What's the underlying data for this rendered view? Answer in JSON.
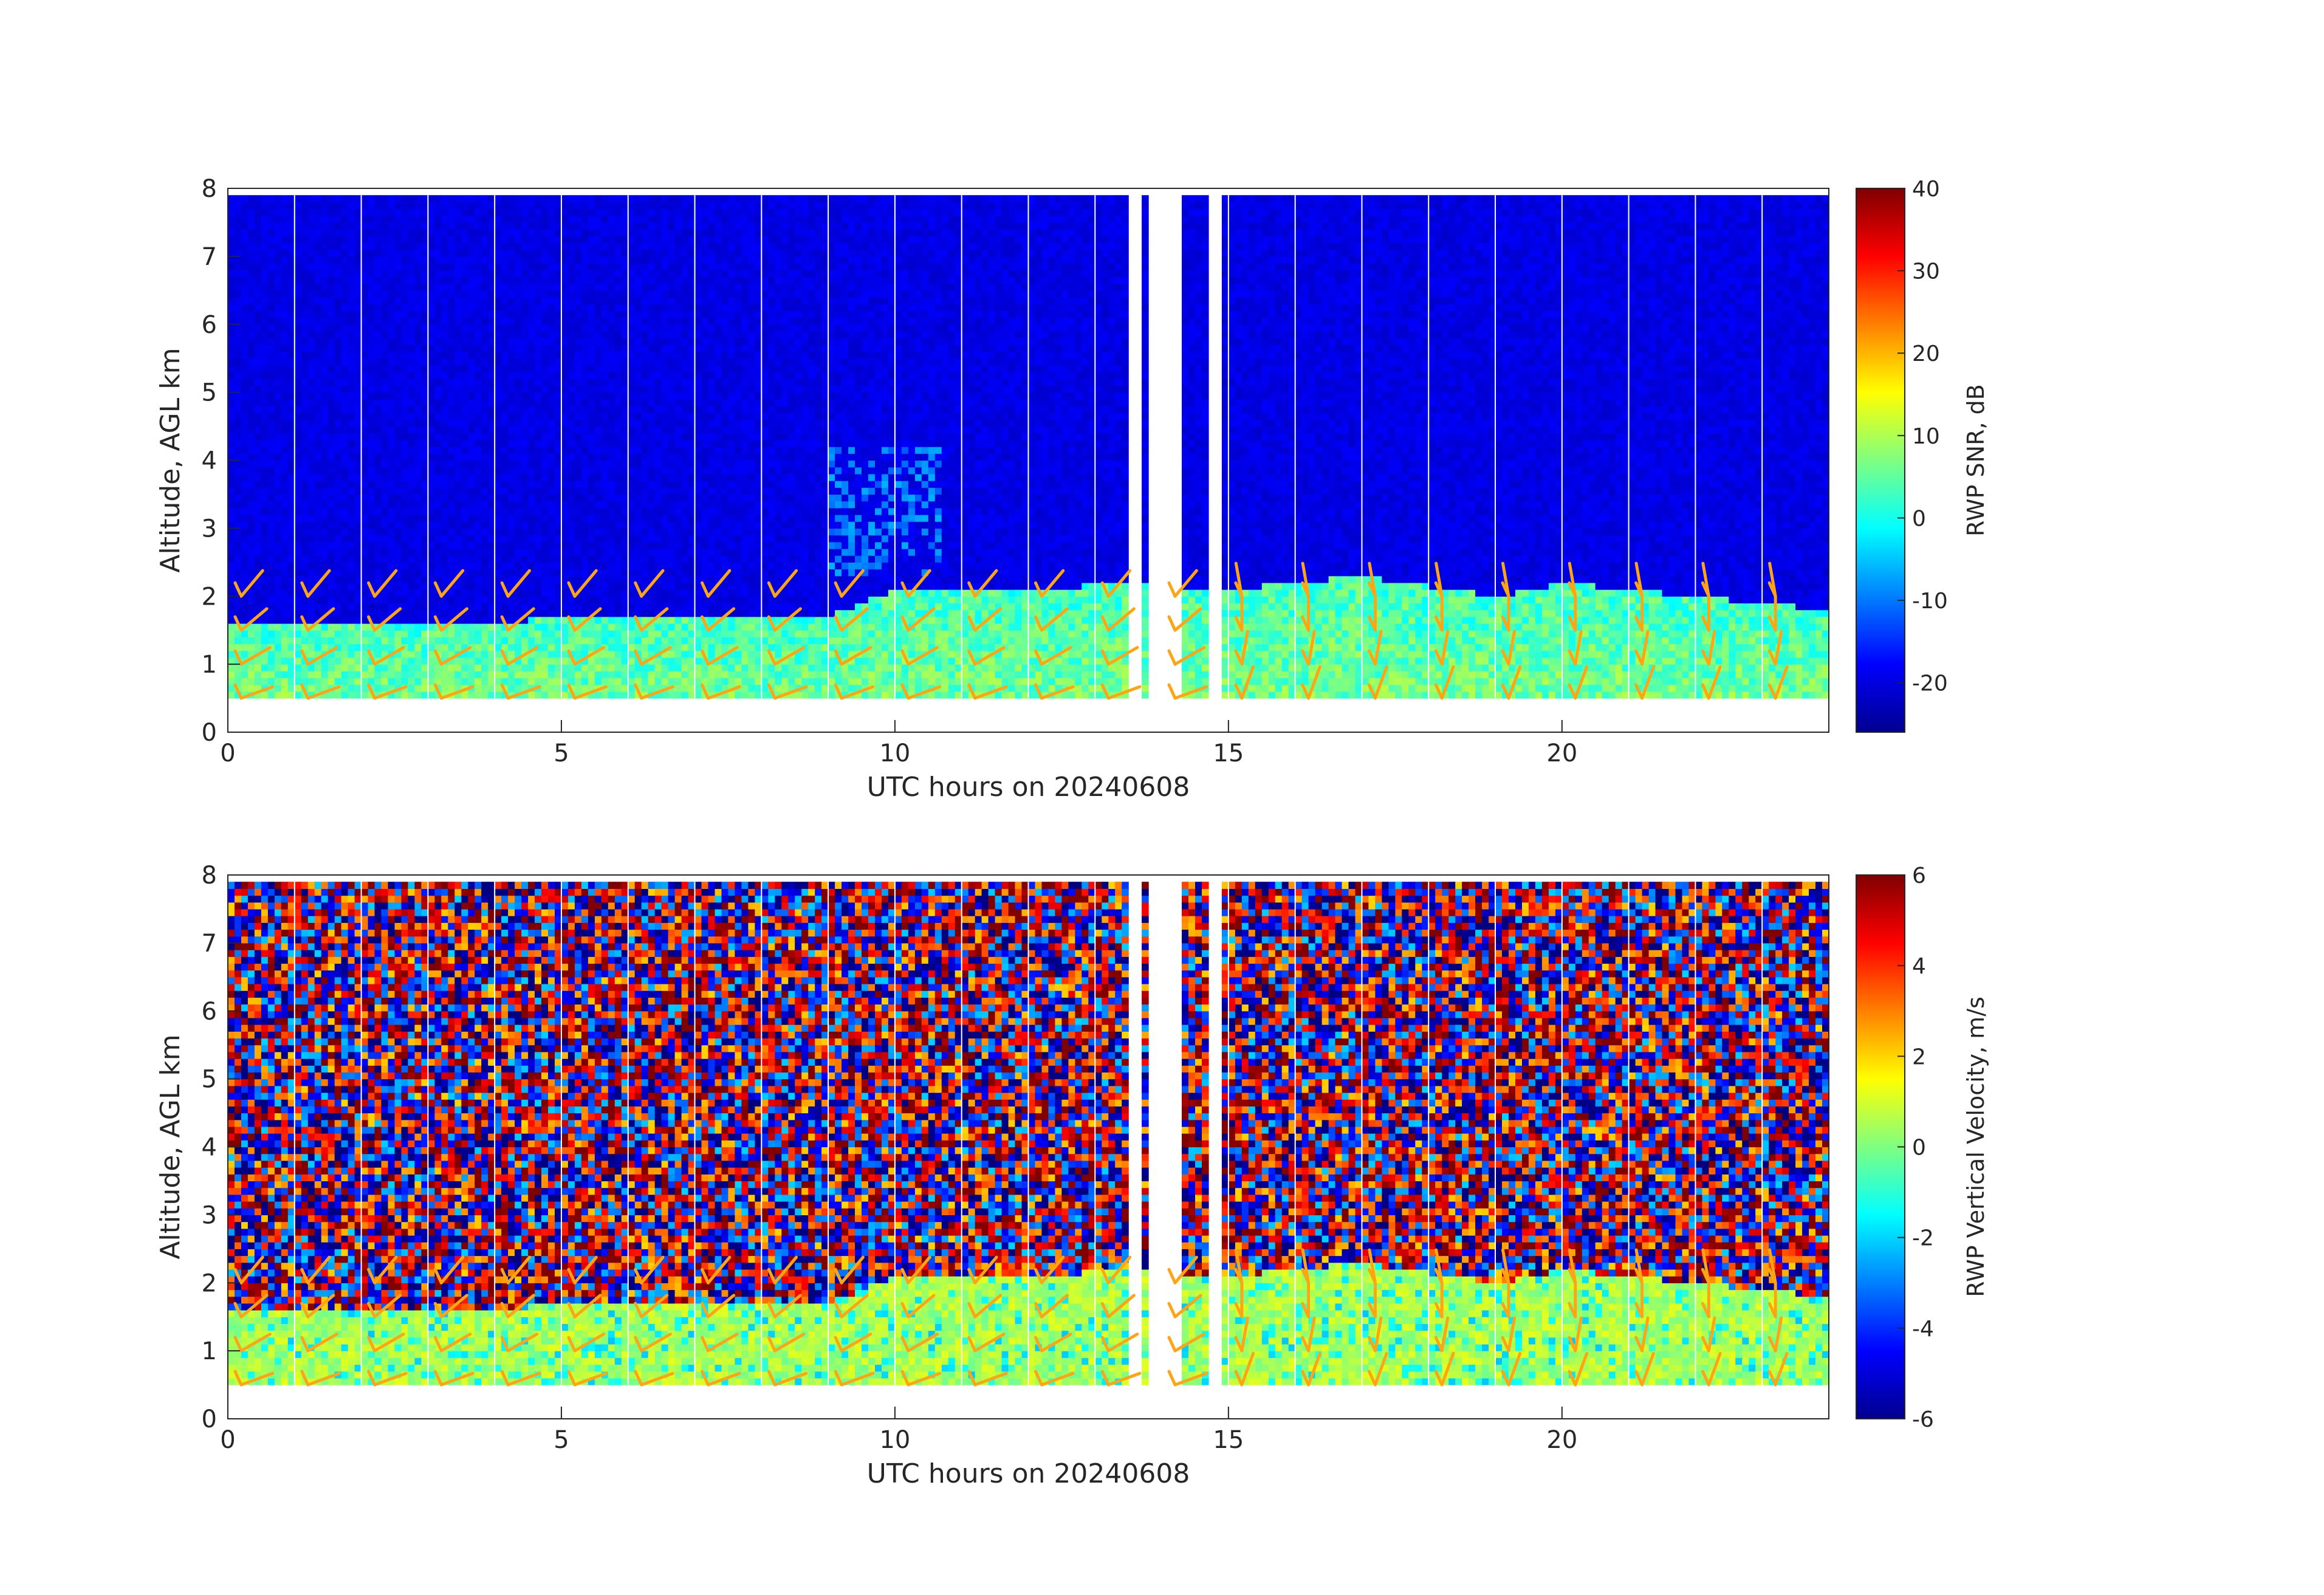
{
  "chart_data": [
    {
      "type": "heatmap",
      "title": "",
      "xlabel": "UTC hours on 20240608",
      "ylabel": "Altitude, AGL km",
      "xlim": [
        0,
        24
      ],
      "ylim": [
        0,
        8
      ],
      "x_ticks": [
        0,
        5,
        10,
        15,
        20
      ],
      "y_ticks": [
        0,
        1,
        2,
        3,
        4,
        5,
        6,
        7,
        8
      ],
      "colorbar": {
        "label": "RWP SNR, dB",
        "range": [
          -26,
          40
        ],
        "ticks": [
          40,
          30,
          20,
          10,
          0,
          -10,
          -20
        ],
        "colormap": "jet"
      },
      "data_altitude_range_km": [
        0.5,
        7.9
      ],
      "boundary_layer_top_km": {
        "x": [
          0,
          9,
          10,
          12,
          13.5,
          15,
          17,
          19,
          20,
          22,
          24
        ],
        "y": [
          1.6,
          1.7,
          2.1,
          2.1,
          2.2,
          2.1,
          2.3,
          2.0,
          2.2,
          2.0,
          1.8
        ]
      },
      "cloud_feature_km": {
        "x_range": [
          9,
          10.7
        ],
        "y_range": [
          2.3,
          4.2
        ]
      },
      "missing_data_hours": [
        [
          13.5,
          13.7
        ],
        [
          13.85,
          14.3
        ],
        [
          14.75,
          14.9
        ]
      ],
      "notes": "Wind barbs (orange) overlaid at fixed altitudes"
    },
    {
      "type": "heatmap",
      "title": "",
      "xlabel": "UTC hours on 20240608",
      "ylabel": "Altitude, AGL km",
      "xlim": [
        0,
        24
      ],
      "ylim": [
        0,
        8
      ],
      "x_ticks": [
        0,
        5,
        10,
        15,
        20
      ],
      "y_ticks": [
        0,
        1,
        2,
        3,
        4,
        5,
        6,
        7,
        8
      ],
      "colorbar": {
        "label": "RWP Vertical Velocity, m/s",
        "range": [
          -6,
          6
        ],
        "ticks": [
          6,
          4,
          2,
          0,
          -2,
          -4,
          -6
        ],
        "colormap": "jet"
      },
      "data_altitude_range_km": [
        0.5,
        7.9
      ],
      "boundary_layer_top_km": {
        "x": [
          0,
          9,
          10,
          12,
          13.5,
          15,
          17,
          19,
          20,
          22,
          24
        ],
        "y": [
          1.6,
          1.7,
          2.1,
          2.1,
          2.2,
          2.1,
          2.3,
          2.0,
          2.2,
          2.0,
          1.8
        ]
      },
      "missing_data_hours": [
        [
          13.5,
          13.7
        ],
        [
          13.85,
          14.3
        ],
        [
          14.75,
          14.9
        ]
      ],
      "notes": "Wind barbs (orange) overlaid at fixed altitudes"
    }
  ],
  "barb_color": "#ffa514"
}
